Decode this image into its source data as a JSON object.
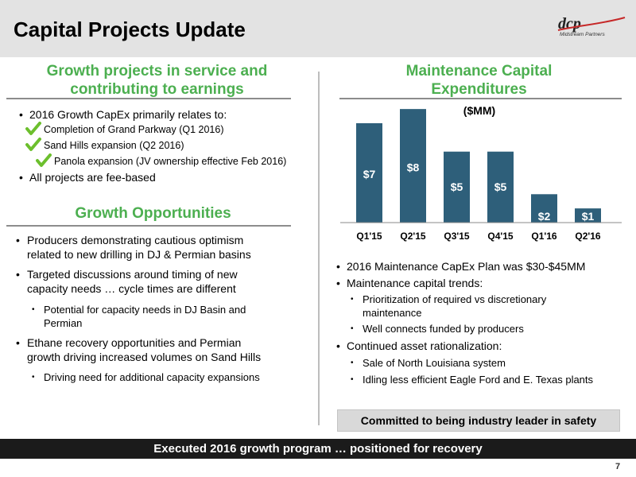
{
  "header": {
    "title": "Capital Projects Update",
    "logo_mark": "dcp",
    "logo_sub": "Midstream Partners"
  },
  "left": {
    "growth_heading_line1": "Growth projects in service and",
    "growth_heading_line2": "contributing to earnings",
    "capex_bullet": "2016 Growth CapEx primarily relates to:",
    "checked_items": [
      "Completion of Grand Parkway (Q1 2016)",
      "Sand Hills expansion (Q2 2016)",
      "Panola expansion (JV ownership effective Feb 2016)"
    ],
    "fee_bullet": "All projects are fee-based",
    "opportunities_heading": "Growth Opportunities",
    "opp_bullets": [
      {
        "line1": "Producers demonstrating cautious optimism",
        "line2": "related to new drilling in DJ & Permian basins"
      },
      {
        "line1": "Targeted discussions around timing of new",
        "line2": "capacity needs … cycle times are different"
      },
      {
        "line1": "Ethane recovery opportunities and Permian",
        "line2": "growth driving increased volumes on Sand Hills"
      }
    ],
    "opp_subs": [
      {
        "line1": "Potential for capacity needs in DJ Basin and",
        "line2": "Permian"
      },
      {
        "line1": "Driving need for additional capacity expansions"
      }
    ]
  },
  "right": {
    "heading_line1": "Maintenance Capital",
    "heading_line2": "Expenditures",
    "bullets": [
      "2016 Maintenance CapEx Plan was $30-$45MM",
      "Maintenance capital trends:",
      "Continued asset rationalization:"
    ],
    "trend_subs": [
      {
        "line1": "Prioritization of required vs discretionary",
        "line2": "maintenance"
      },
      {
        "line1": "Well connects funded by producers"
      }
    ],
    "rationalization_subs": [
      "Sale of North Louisiana system",
      "Idling less efficient Eagle Ford and E. Texas plants"
    ],
    "safety_box": "Committed to being industry leader in safety"
  },
  "chart_data": {
    "type": "bar",
    "title": "($MM)",
    "categories": [
      "Q1'15",
      "Q2'15",
      "Q3'15",
      "Q4'15",
      "Q1'16",
      "Q2'16"
    ],
    "values": [
      7,
      8,
      5,
      5,
      2,
      1
    ],
    "labels": [
      "$7",
      "$8",
      "$5",
      "$5",
      "$2",
      "$1"
    ],
    "ylim": [
      0,
      8.4
    ],
    "bar_color": "#2e5f7a",
    "grid": false,
    "legend": "none"
  },
  "footer": {
    "banner": "Executed 2016 growth program … positioned for recovery",
    "page": "7"
  },
  "colors": {
    "heading_green": "#4caf50",
    "footer_bg": "#1b1b1b",
    "check_green": "#6cbf2d"
  }
}
